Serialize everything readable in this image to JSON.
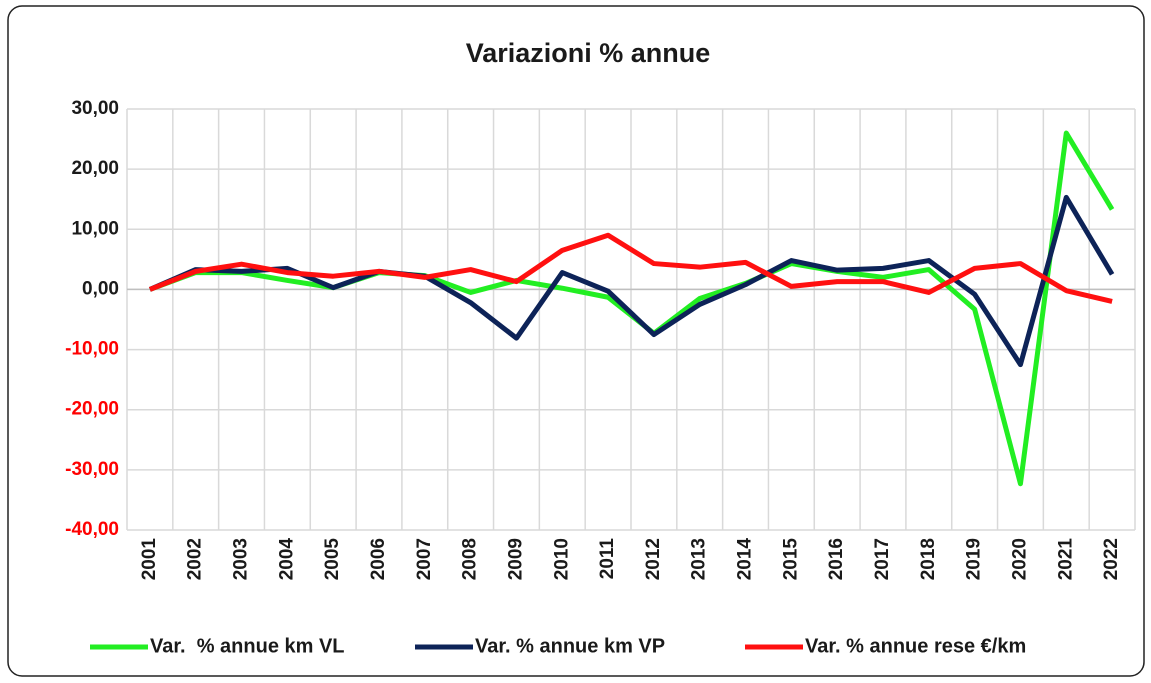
{
  "chart_data": {
    "type": "line",
    "title": "Variazioni % annue",
    "categories": [
      "2001",
      "2002",
      "2003",
      "2004",
      "2005",
      "2006",
      "2007",
      "2008",
      "2009",
      "2010",
      "2011",
      "2012",
      "2013",
      "2014",
      "2015",
      "2016",
      "2017",
      "2018",
      "2019",
      "2020",
      "2021",
      "2022"
    ],
    "series": [
      {
        "name": "Var.  % annue km VL",
        "color": "#22ee22",
        "values": [
          0,
          2.8,
          2.8,
          1.5,
          0.3,
          2.8,
          2.3,
          -0.5,
          1.5,
          0.2,
          -1.3,
          -7.3,
          -1.5,
          1,
          4.3,
          3,
          2,
          3.3,
          -3.3,
          -32.3,
          26,
          13.3
        ]
      },
      {
        "name": "Var. % annue km VP",
        "color": "#0d2358",
        "values": [
          0,
          3.3,
          3,
          3.5,
          0.3,
          3,
          2.2,
          -2.2,
          -8.1,
          2.8,
          -0.3,
          -7.5,
          -2.5,
          0.8,
          4.8,
          3.2,
          3.5,
          4.8,
          -0.8,
          -12.5,
          15.3,
          2.5
        ]
      },
      {
        "name": "Var. % annue rese €/km",
        "color": "#ff1010",
        "values": [
          0,
          3,
          4.2,
          2.8,
          2.2,
          3,
          2,
          3.3,
          1.3,
          6.5,
          9,
          4.3,
          3.7,
          4.5,
          0.5,
          1.3,
          1.3,
          -0.5,
          3.5,
          4.3,
          -0.2,
          -2
        ]
      }
    ],
    "ylim": [
      -40,
      30
    ],
    "yticks": [
      {
        "value": -40,
        "label": "-40,00"
      },
      {
        "value": -30,
        "label": "-30,00"
      },
      {
        "value": -20,
        "label": "-20,00"
      },
      {
        "value": -10,
        "label": "-10,00"
      },
      {
        "value": 0,
        "label": "0,00"
      },
      {
        "value": 10,
        "label": "10,00"
      },
      {
        "value": 20,
        "label": "20,00"
      },
      {
        "value": 30,
        "label": "30,00"
      }
    ],
    "negative_tick_color": "#ff0000",
    "grid": true,
    "legend": "bottom"
  }
}
